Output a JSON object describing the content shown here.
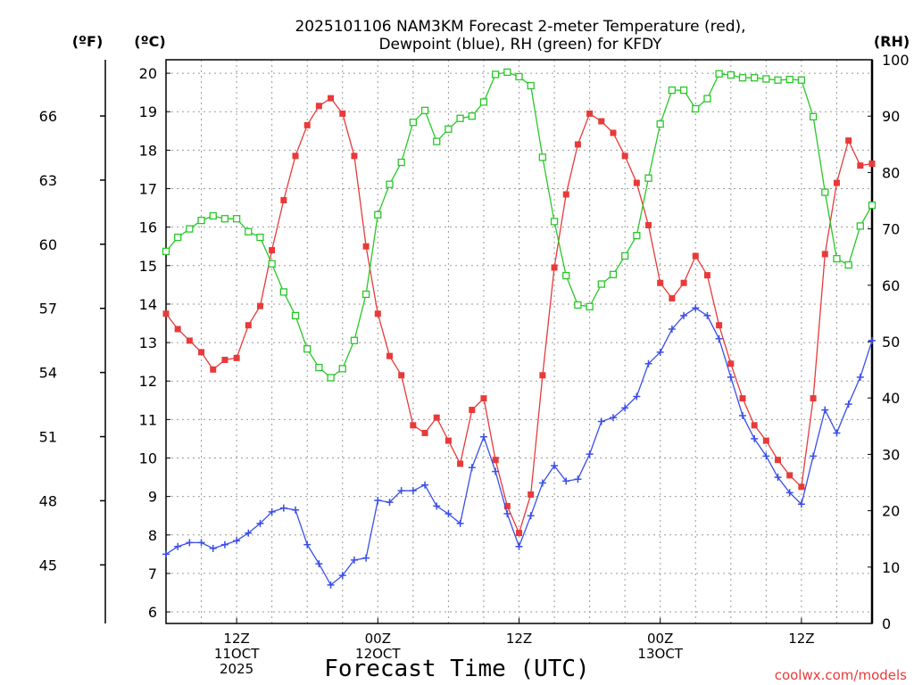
{
  "chart_data": {
    "type": "line",
    "title": "2025101106 NAM3KM Forecast 2-meter Temperature (red),",
    "subtitle": "Dewpoint (blue), RH (green) for KFDY",
    "xlabel": "Forecast Time (UTC)",
    "credit": "coolwx.com/models",
    "units": {
      "fahrenheit": "(ºF)",
      "celsius": "(ºC)",
      "rh": "(RH)"
    },
    "x_unit": "forecast hour from 2025-10-11 06Z",
    "xlim": [
      6,
      66
    ],
    "xticks": [
      {
        "hour": 12,
        "lines": [
          "12Z",
          "11OCT",
          "2025"
        ]
      },
      {
        "hour": 24,
        "lines": [
          "00Z",
          "12OCT"
        ]
      },
      {
        "hour": 36,
        "lines": [
          "12Z"
        ]
      },
      {
        "hour": 48,
        "lines": [
          "00Z",
          "13OCT"
        ]
      },
      {
        "hour": 60,
        "lines": [
          "12Z"
        ]
      }
    ],
    "left_axis": {
      "label": "(ºC)",
      "ylim": [
        5.7,
        20.35
      ],
      "ticks": [
        6,
        7,
        8,
        9,
        10,
        11,
        12,
        13,
        14,
        15,
        16,
        17,
        18,
        19,
        20
      ]
    },
    "far_left_axis": {
      "label": "(ºF)",
      "ticks": [
        45,
        48,
        51,
        54,
        57,
        60,
        63,
        66
      ]
    },
    "right_axis": {
      "label": "(RH)",
      "ylim": [
        0,
        100
      ],
      "ticks": [
        0,
        10,
        20,
        30,
        40,
        50,
        60,
        70,
        80,
        90,
        100
      ]
    },
    "colors": {
      "temperature": "#e83a3a",
      "dewpoint": "#3a4ee8",
      "rh": "#28c828",
      "grid": "#9a9a9a"
    },
    "series": [
      {
        "name": "Temperature (°C)",
        "axis": "left",
        "marker": "filled-square",
        "color": "#e83a3a",
        "x": [
          6,
          7,
          8,
          9,
          10,
          11,
          12,
          13,
          14,
          15,
          16,
          17,
          18,
          19,
          20,
          21,
          22,
          23,
          24,
          25,
          26,
          27,
          28,
          29,
          30,
          31,
          32,
          33,
          34,
          35,
          36,
          37,
          38,
          39,
          40,
          41,
          42,
          43,
          44,
          45,
          46,
          47,
          48,
          49,
          50,
          51,
          52,
          53,
          54,
          55,
          56,
          57,
          58,
          59,
          60,
          61,
          62,
          63,
          64,
          65,
          66
        ],
        "values": [
          13.75,
          13.35,
          13.05,
          12.75,
          12.3,
          12.55,
          12.6,
          13.45,
          13.95,
          15.4,
          16.7,
          17.85,
          18.65,
          19.15,
          19.35,
          18.95,
          17.85,
          15.5,
          13.75,
          12.65,
          12.15,
          10.85,
          10.65,
          11.05,
          10.45,
          9.85,
          11.25,
          11.55,
          9.95,
          8.75,
          8.05,
          9.05,
          12.15,
          14.95,
          16.85,
          18.15,
          18.95,
          18.75,
          18.45,
          17.85,
          17.15,
          16.05,
          14.55,
          14.15,
          14.55,
          15.25,
          14.75,
          13.45,
          12.45,
          11.55,
          10.85,
          10.45,
          9.95,
          9.55,
          9.25,
          11.55,
          15.3,
          17.15,
          18.25,
          17.6,
          17.65
        ]
      },
      {
        "name": "Dewpoint (°C)",
        "axis": "left",
        "marker": "plus",
        "color": "#3a4ee8",
        "x": [
          6,
          7,
          8,
          9,
          10,
          11,
          12,
          13,
          14,
          15,
          16,
          17,
          18,
          19,
          20,
          21,
          22,
          23,
          24,
          25,
          26,
          27,
          28,
          29,
          30,
          31,
          32,
          33,
          34,
          35,
          36,
          37,
          38,
          39,
          40,
          41,
          42,
          43,
          44,
          45,
          46,
          47,
          48,
          49,
          50,
          51,
          52,
          53,
          54,
          55,
          56,
          57,
          58,
          59,
          60,
          61,
          62,
          63,
          64,
          65,
          66
        ],
        "values": [
          7.5,
          7.7,
          7.8,
          7.8,
          7.65,
          7.75,
          7.85,
          8.05,
          8.3,
          8.6,
          8.7,
          8.65,
          7.75,
          7.25,
          6.7,
          6.95,
          7.35,
          7.4,
          8.9,
          8.85,
          9.15,
          9.15,
          9.3,
          8.75,
          8.55,
          8.3,
          9.75,
          10.55,
          9.65,
          8.55,
          7.7,
          8.5,
          9.35,
          9.8,
          9.4,
          9.45,
          10.1,
          10.95,
          11.05,
          11.3,
          11.6,
          12.45,
          12.75,
          13.35,
          13.7,
          13.9,
          13.7,
          13.1,
          12.1,
          11.1,
          10.5,
          10.05,
          9.5,
          9.1,
          8.8,
          10.05,
          11.25,
          10.65,
          11.4,
          12.1,
          13.05
        ]
      },
      {
        "name": "RH (%)",
        "axis": "right",
        "marker": "open-square",
        "color": "#28c828",
        "x": [
          6,
          7,
          8,
          9,
          10,
          11,
          12,
          13,
          14,
          15,
          16,
          17,
          18,
          19,
          20,
          21,
          22,
          23,
          24,
          25,
          26,
          27,
          28,
          29,
          30,
          31,
          32,
          33,
          34,
          35,
          36,
          37,
          38,
          39,
          40,
          41,
          42,
          43,
          44,
          45,
          46,
          47,
          48,
          49,
          50,
          51,
          52,
          53,
          54,
          55,
          56,
          57,
          58,
          59,
          60,
          61,
          62,
          63,
          64,
          65,
          66
        ],
        "values": [
          66,
          68.5,
          70,
          71.5,
          72.3,
          71.8,
          71.8,
          69.5,
          68.5,
          63.8,
          58.8,
          54.6,
          48.7,
          45.4,
          43.6,
          45.2,
          50.2,
          58.4,
          72.5,
          77.9,
          81.8,
          88.9,
          91,
          85.5,
          87.7,
          89.6,
          90,
          92.5,
          97.4,
          97.8,
          97,
          95.4,
          82.7,
          71.3,
          61.7,
          56.5,
          56.2,
          60.2,
          61.9,
          65.2,
          68.8,
          79,
          88.6,
          94.6,
          94.6,
          91.3,
          93.1,
          97.5,
          97.3,
          96.8,
          96.8,
          96.6,
          96.4,
          96.5,
          96.4,
          89.9,
          76.5,
          64.7,
          63.6,
          70.5,
          74.2
        ]
      }
    ]
  }
}
